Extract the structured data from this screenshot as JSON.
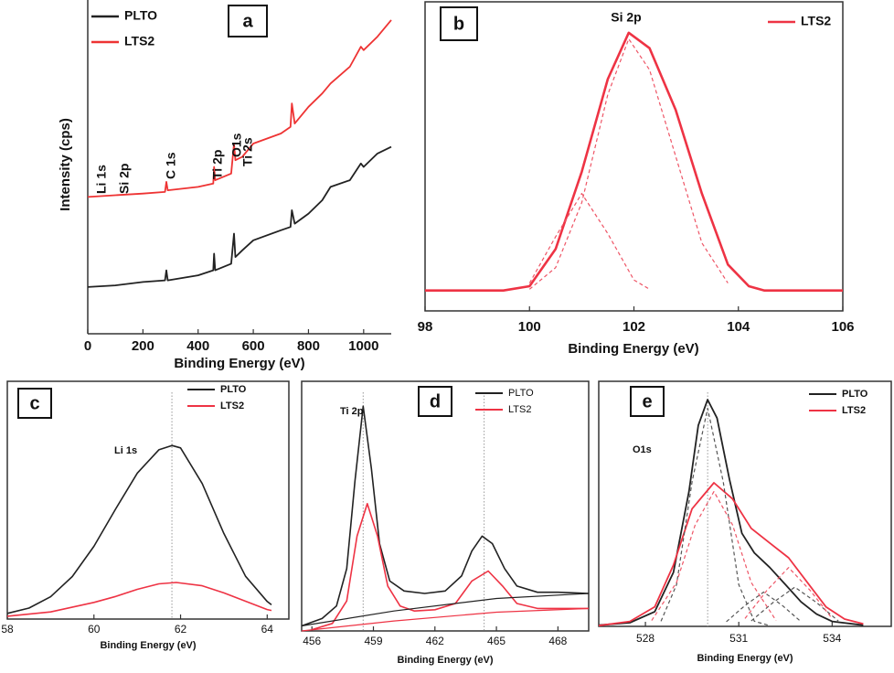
{
  "chart_data": [
    {
      "type": "line",
      "label": "a",
      "xlabel": "Binding Energy (eV)",
      "ylabel": "Intensity (cps)",
      "xlim": [
        0,
        1100
      ],
      "xticks": [
        0,
        200,
        400,
        600,
        800,
        1000
      ],
      "ylim": [
        0,
        100
      ],
      "frame": "left-bottom",
      "legend": "upper left",
      "annotations": [
        "Li 1s",
        "Si 2p",
        "C 1s",
        "Ti 2p",
        "O1s",
        "Ti 2s"
      ],
      "series": [
        {
          "name": "PLTO",
          "color": "#222222",
          "x": [
            0,
            100,
            200,
            280,
            285,
            290,
            400,
            455,
            458,
            462,
            520,
            530,
            535,
            560,
            600,
            700,
            735,
            740,
            750,
            800,
            850,
            880,
            950,
            990,
            1000,
            1050,
            1100
          ],
          "values": [
            14,
            14.5,
            15.5,
            16,
            19,
            16,
            17.5,
            19,
            24,
            19,
            21,
            30,
            23,
            25,
            28,
            31,
            32,
            37,
            33,
            36,
            40,
            44,
            46,
            51,
            50,
            54,
            56
          ]
        },
        {
          "name": "LTS2",
          "color": "#ee3333",
          "x": [
            0,
            100,
            200,
            280,
            285,
            290,
            400,
            455,
            458,
            462,
            520,
            530,
            535,
            560,
            600,
            700,
            735,
            740,
            750,
            800,
            850,
            880,
            950,
            990,
            1000,
            1050,
            1100
          ],
          "values": [
            41,
            41.5,
            42,
            42.5,
            45.5,
            43,
            44,
            45,
            50,
            46,
            48,
            57,
            52,
            53,
            57,
            60,
            62,
            69,
            63,
            68,
            72,
            75,
            80,
            86,
            85,
            89,
            94
          ]
        }
      ]
    },
    {
      "type": "line",
      "label": "b",
      "xlabel": "Binding Energy (eV)",
      "xlim": [
        98,
        106
      ],
      "xticks": [
        98,
        100,
        102,
        104,
        106
      ],
      "ylim": [
        0,
        100
      ],
      "frame": "box",
      "legend": "upper right",
      "annotations": [
        "Si 2p"
      ],
      "series": [
        {
          "name": "LTS2",
          "color": "#ee3344",
          "x": [
            98,
            99.5,
            100,
            100.5,
            101,
            101.5,
            101.9,
            102.3,
            102.8,
            103.3,
            103.8,
            104.2,
            104.5,
            106
          ],
          "values": [
            6.6,
            6.6,
            8,
            20,
            45,
            75,
            90,
            85,
            65,
            38,
            15,
            8,
            6.6,
            6.6
          ]
        },
        {
          "color": "#ee5566",
          "dashed": true,
          "x": [
            100,
            100.5,
            101,
            101.5,
            101.9,
            102.3,
            102.8,
            103.3,
            103.8
          ],
          "values": [
            7,
            14,
            35,
            70,
            88,
            78,
            50,
            22,
            9
          ]
        },
        {
          "color": "#ee5566",
          "dashed": true,
          "x": [
            100,
            100.5,
            101,
            101.5,
            102,
            102.3
          ],
          "values": [
            9,
            24,
            38,
            25,
            10,
            7
          ]
        }
      ]
    },
    {
      "type": "line",
      "label": "c",
      "xlabel": "Binding Energy (eV)",
      "xlim": [
        58,
        64.5
      ],
      "xticks": [
        58,
        60,
        62,
        64
      ],
      "ylim": [
        0,
        100
      ],
      "frame": "box",
      "legend": "upper right",
      "annotations": [
        "Li 1s"
      ],
      "reference_lines": [
        61.8
      ],
      "series": [
        {
          "name": "PLTO",
          "color": "#222222",
          "x": [
            58,
            58.5,
            59,
            59.5,
            60,
            60.5,
            61,
            61.5,
            61.8,
            62,
            62.5,
            63,
            63.5,
            64,
            64.1
          ],
          "values": [
            2.4,
            4.6,
            9.4,
            17.9,
            30.6,
            46.3,
            61.4,
            71.2,
            73,
            72,
            57,
            36,
            18,
            7.4,
            6
          ]
        },
        {
          "name": "LTS2",
          "color": "#ee3344",
          "x": [
            58,
            59,
            60,
            60.5,
            61,
            61.5,
            61.9,
            62.5,
            63,
            63.5,
            64,
            64.1
          ],
          "values": [
            1.2,
            3,
            7,
            9.5,
            12.5,
            14.8,
            15.4,
            14,
            11,
            7.5,
            4,
            3.6
          ]
        }
      ]
    },
    {
      "type": "line",
      "label": "d",
      "xlabel": "Binding Energy (eV)",
      "xlim": [
        455.5,
        469.5
      ],
      "xticks": [
        456,
        459,
        462,
        465,
        468
      ],
      "ylim": [
        0,
        100
      ],
      "frame": "box",
      "legend": "upper right",
      "annotations": [
        "Ti 2p"
      ],
      "reference_lines": [
        458.5,
        464.4
      ],
      "series": [
        {
          "name": "PLTO",
          "color": "#222222",
          "x": [
            455.5,
            456.5,
            457.2,
            457.7,
            458.1,
            458.5,
            458.9,
            459.3,
            459.8,
            460.5,
            461.5,
            462.5,
            463.3,
            463.8,
            464.3,
            464.8,
            465.4,
            466,
            467,
            468,
            469.5
          ],
          "values": [
            2,
            5,
            10,
            25,
            60,
            90,
            65,
            35,
            20,
            16,
            15,
            16,
            22,
            32,
            38,
            35,
            25,
            18,
            15.5,
            15.5,
            15
          ]
        },
        {
          "name": "LTS2",
          "color": "#ee3344",
          "x": [
            456,
            457,
            457.7,
            458.2,
            458.7,
            459.2,
            459.7,
            460.3,
            461,
            462,
            463,
            463.8,
            464.6,
            465.3,
            466,
            467,
            469.5
          ],
          "values": [
            0.5,
            3,
            12,
            38,
            51,
            38,
            18,
            10,
            8,
            8.5,
            11,
            20,
            24,
            18,
            11,
            9,
            9
          ]
        },
        {
          "color": "#222222",
          "x": [
            455.5,
            460,
            465,
            469.5
          ],
          "values": [
            2,
            8,
            13,
            15
          ]
        },
        {
          "color": "#ee3344",
          "x": [
            455.5,
            460,
            465,
            469.5
          ],
          "values": [
            0,
            4,
            7.5,
            9
          ]
        }
      ]
    },
    {
      "type": "line",
      "label": "e",
      "xlabel": "Binding Energy (eV)",
      "xlim": [
        526.5,
        535.9
      ],
      "xticks": [
        528,
        531,
        534
      ],
      "ylim": [
        0,
        100
      ],
      "frame": "box",
      "legend": "upper right",
      "annotations": [
        "O1s"
      ],
      "reference_lines": [
        530.0
      ],
      "series": [
        {
          "name": "PLTO",
          "color": "#222222",
          "x": [
            526.5,
            527.5,
            528.3,
            528.9,
            529.4,
            529.7,
            530.0,
            530.3,
            530.7,
            531.1,
            531.5,
            532,
            532.5,
            533,
            533.5,
            534,
            535
          ],
          "values": [
            0.5,
            1.5,
            6,
            22,
            55,
            82,
            92.5,
            85,
            60,
            38,
            30,
            24,
            17,
            10,
            5,
            2,
            0.5
          ]
        },
        {
          "name": "LTS2",
          "color": "#ee3344",
          "x": [
            526.5,
            527.5,
            528.3,
            528.9,
            529.5,
            530.2,
            530.8,
            531.4,
            532,
            532.6,
            533.2,
            533.8,
            534.4,
            535
          ],
          "values": [
            0.3,
            2,
            8,
            25,
            48,
            58.6,
            52,
            40,
            34,
            28,
            18,
            8,
            3,
            1
          ]
        },
        {
          "color": "#555555",
          "dashed": true,
          "x": [
            528.5,
            529,
            529.5,
            530,
            530.5,
            531,
            531.5,
            532
          ],
          "values": [
            2.1,
            17,
            59,
            89,
            59,
            17,
            2.1,
            0.3
          ]
        },
        {
          "color": "#555555",
          "dashed": true,
          "x": [
            530.6,
            531.2,
            531.8,
            532.4,
            533
          ],
          "values": [
            1.9,
            8.5,
            14,
            8.5,
            1.9
          ]
        },
        {
          "color": "#555555",
          "dashed": true,
          "x": [
            531.4,
            532.1,
            532.8,
            533.5,
            534.2
          ],
          "values": [
            2.2,
            9.7,
            16,
            9.7,
            2.2
          ]
        },
        {
          "color": "#ee5566",
          "dashed": true,
          "x": [
            528.2,
            529,
            529.6,
            530.2,
            530.8,
            531.4,
            532.2
          ],
          "values": [
            2.4,
            17.9,
            41.4,
            55,
            41.4,
            17.9,
            2.4
          ]
        },
        {
          "color": "#ee5566",
          "dashed": true,
          "x": [
            531.2,
            531.9,
            532.6,
            533.3,
            534
          ],
          "values": [
            3.2,
            14.6,
            24,
            14.6,
            3.2
          ]
        }
      ]
    }
  ]
}
